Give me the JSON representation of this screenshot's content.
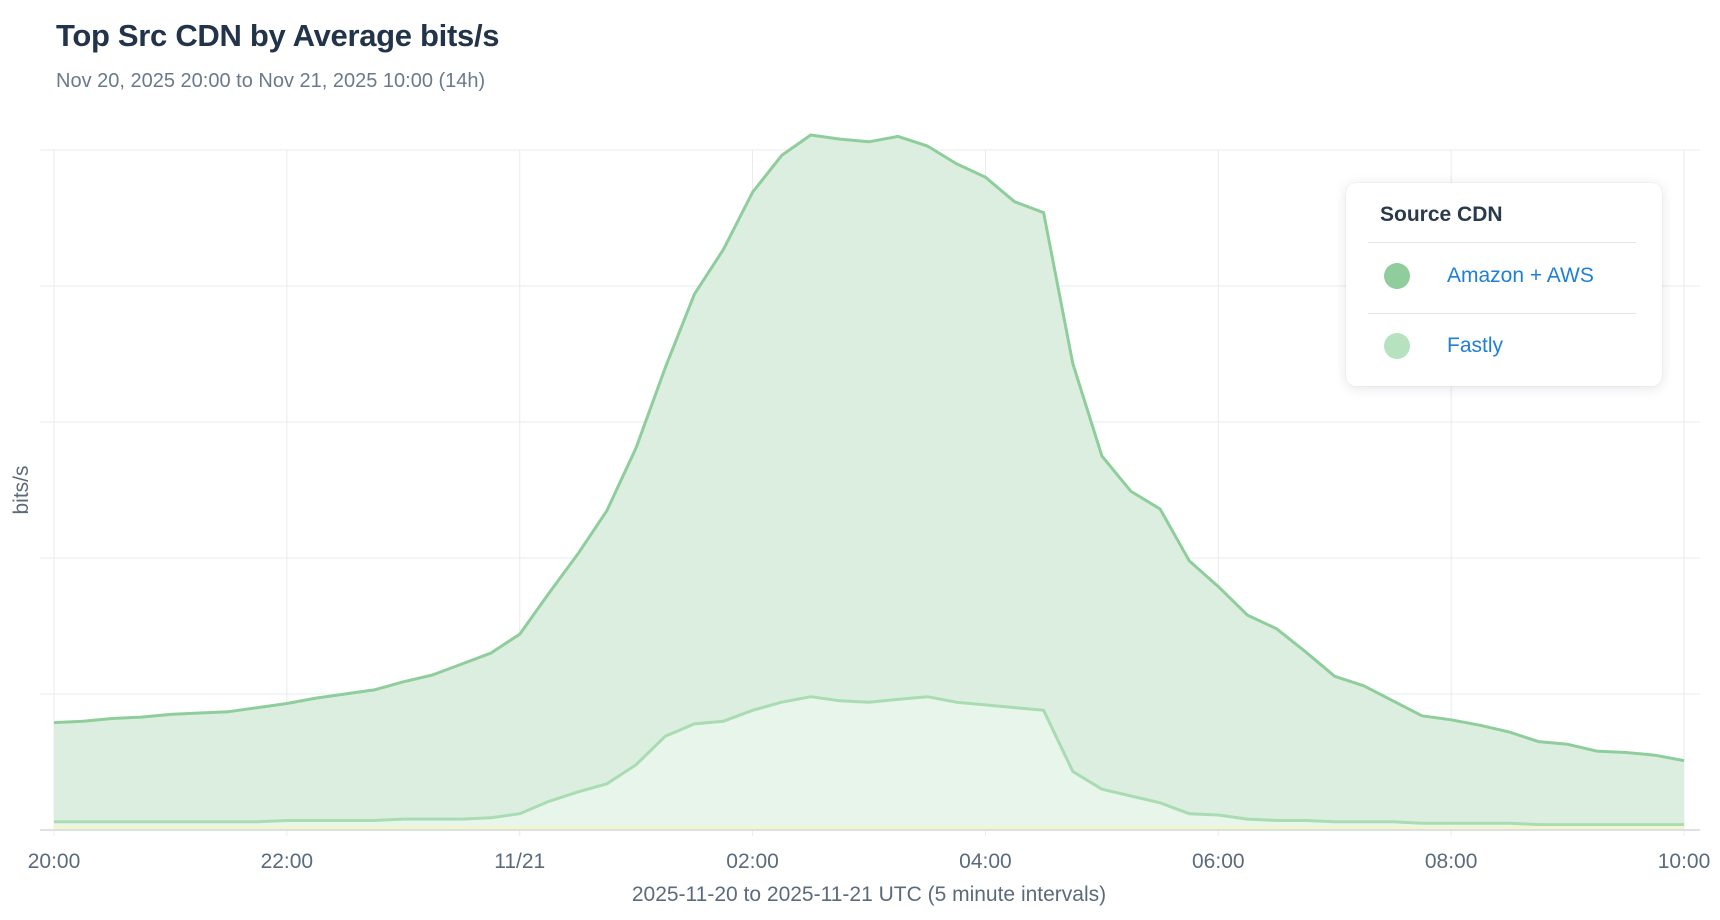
{
  "header": {
    "title": "Top Src CDN by Average bits/s",
    "subtitle": "Nov 20, 2025 20:00 to Nov 21, 2025 10:00 (14h)"
  },
  "legend": {
    "title": "Source  CDN",
    "items": [
      {
        "label": "Amazon + AWS",
        "color": "#8fce9c"
      },
      {
        "label": "Fastly",
        "color": "#b6e2c0"
      }
    ]
  },
  "chart_data": {
    "type": "area",
    "stacked": true,
    "ylabel": "bits/s",
    "xlabel": "2025-11-20 to 2025-11-21 UTC (5 minute intervals)",
    "x_tick_labels": [
      "20:00",
      "22:00",
      "11/21",
      "02:00",
      "04:00",
      "06:00",
      "08:00",
      "10:00"
    ],
    "y_tick_labels": [],
    "ylim": [
      0,
      5
    ],
    "grid": true,
    "legend_position": "top-right",
    "x": [
      "20:00",
      "20:15",
      "20:30",
      "20:45",
      "21:00",
      "21:15",
      "21:30",
      "21:45",
      "22:00",
      "22:15",
      "22:30",
      "22:45",
      "23:00",
      "23:15",
      "23:30",
      "23:45",
      "00:00",
      "00:15",
      "00:30",
      "00:45",
      "01:00",
      "01:15",
      "01:30",
      "01:45",
      "02:00",
      "02:15",
      "02:30",
      "02:45",
      "03:00",
      "03:15",
      "03:30",
      "03:45",
      "04:00",
      "04:15",
      "04:30",
      "04:45",
      "05:00",
      "05:15",
      "05:30",
      "05:45",
      "06:00",
      "06:15",
      "06:30",
      "06:45",
      "07:00",
      "07:15",
      "07:30",
      "07:45",
      "08:00",
      "08:15",
      "08:30",
      "08:45",
      "09:00",
      "09:15",
      "09:30",
      "09:45",
      "10:00"
    ],
    "series": [
      {
        "name": "Amazon + AWS",
        "values": [
          0.73,
          0.74,
          0.76,
          0.77,
          0.79,
          0.8,
          0.81,
          0.84,
          0.86,
          0.9,
          0.93,
          0.96,
          1.01,
          1.06,
          1.14,
          1.21,
          1.32,
          1.53,
          1.75,
          2.01,
          2.33,
          2.71,
          3.16,
          3.47,
          3.81,
          4.02,
          4.13,
          4.13,
          4.12,
          4.14,
          4.05,
          3.96,
          3.88,
          3.72,
          3.66,
          3.0,
          2.45,
          2.24,
          2.16,
          1.86,
          1.68,
          1.5,
          1.41,
          1.24,
          1.07,
          1.0,
          0.89,
          0.79,
          0.76,
          0.72,
          0.67,
          0.61,
          0.59,
          0.54,
          0.53,
          0.51,
          0.47
        ]
      },
      {
        "name": "Fastly",
        "values": [
          0.06,
          0.06,
          0.06,
          0.06,
          0.06,
          0.06,
          0.06,
          0.06,
          0.07,
          0.07,
          0.07,
          0.07,
          0.08,
          0.08,
          0.08,
          0.09,
          0.12,
          0.21,
          0.28,
          0.34,
          0.48,
          0.69,
          0.78,
          0.8,
          0.88,
          0.94,
          0.98,
          0.95,
          0.94,
          0.96,
          0.98,
          0.94,
          0.92,
          0.9,
          0.88,
          0.43,
          0.3,
          0.25,
          0.2,
          0.12,
          0.11,
          0.08,
          0.07,
          0.07,
          0.06,
          0.06,
          0.06,
          0.05,
          0.05,
          0.05,
          0.05,
          0.04,
          0.04,
          0.04,
          0.04,
          0.04,
          0.04
        ]
      }
    ]
  }
}
